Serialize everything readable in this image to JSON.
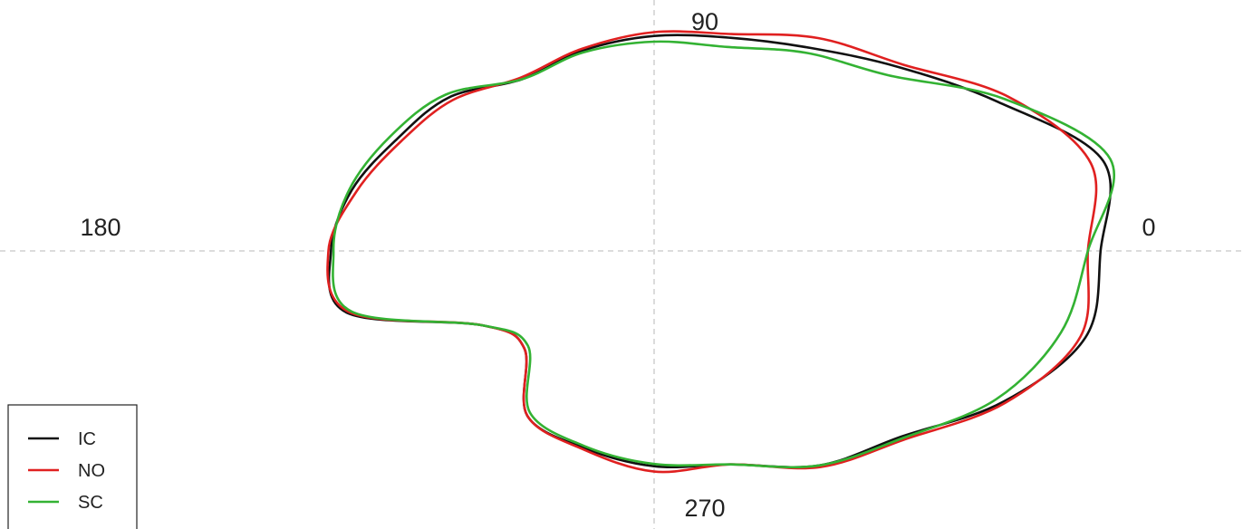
{
  "chart_data": {
    "type": "polar-line",
    "angle_labels": {
      "a0": "0",
      "a90": "90",
      "a180": "180",
      "a270": "270"
    },
    "angle_unit": "degrees",
    "grid": "dashed-crosshair",
    "legend_position": "bottom-left",
    "radius_axis_labels_shown": false,
    "series": [
      {
        "name": "IC",
        "color": "#111111",
        "points": [
          [
            0,
            0.88
          ],
          [
            15,
            0.916
          ],
          [
            30,
            0.783
          ],
          [
            45,
            0.683
          ],
          [
            60,
            0.616
          ],
          [
            75,
            0.58
          ],
          [
            90,
            0.565
          ],
          [
            105,
            0.545
          ],
          [
            120,
            0.521
          ],
          [
            135,
            0.571
          ],
          [
            150,
            0.586
          ],
          [
            165,
            0.617
          ],
          [
            180,
            0.637
          ],
          [
            195,
            0.627
          ],
          [
            210,
            0.391
          ],
          [
            225,
            0.362
          ],
          [
            240,
            0.5
          ],
          [
            255,
            0.536
          ],
          [
            270,
            0.566
          ],
          [
            285,
            0.581
          ],
          [
            300,
            0.651
          ],
          [
            315,
            0.69
          ],
          [
            330,
            0.794
          ],
          [
            345,
            0.88
          ],
          [
            360,
            0.88
          ]
        ]
      },
      {
        "name": "NO",
        "color": "#e02020",
        "points": [
          [
            0,
            0.855
          ],
          [
            15,
            0.891
          ],
          [
            30,
            0.808
          ],
          [
            45,
            0.693
          ],
          [
            60,
            0.646
          ],
          [
            75,
            0.59
          ],
          [
            90,
            0.575
          ],
          [
            105,
            0.55
          ],
          [
            120,
            0.526
          ],
          [
            135,
            0.561
          ],
          [
            150,
            0.576
          ],
          [
            165,
            0.607
          ],
          [
            180,
            0.642
          ],
          [
            195,
            0.622
          ],
          [
            210,
            0.391
          ],
          [
            225,
            0.362
          ],
          [
            240,
            0.5
          ],
          [
            255,
            0.54
          ],
          [
            270,
            0.58
          ],
          [
            285,
            0.581
          ],
          [
            300,
            0.656
          ],
          [
            315,
            0.7
          ],
          [
            330,
            0.799
          ],
          [
            345,
            0.87
          ],
          [
            360,
            0.855
          ]
        ]
      },
      {
        "name": "SC",
        "color": "#33b233",
        "points": [
          [
            0,
            0.855
          ],
          [
            15,
            0.931
          ],
          [
            30,
            0.798
          ],
          [
            45,
            0.653
          ],
          [
            60,
            0.601
          ],
          [
            75,
            0.555
          ],
          [
            90,
            0.55
          ],
          [
            105,
            0.54
          ],
          [
            120,
            0.521
          ],
          [
            135,
            0.581
          ],
          [
            150,
            0.601
          ],
          [
            165,
            0.622
          ],
          [
            180,
            0.632
          ],
          [
            195,
            0.617
          ],
          [
            210,
            0.391
          ],
          [
            225,
            0.352
          ],
          [
            240,
            0.49
          ],
          [
            255,
            0.531
          ],
          [
            270,
            0.56
          ],
          [
            285,
            0.581
          ],
          [
            300,
            0.651
          ],
          [
            315,
            0.695
          ],
          [
            330,
            0.779
          ],
          [
            345,
            0.83
          ],
          [
            360,
            0.855
          ]
        ]
      }
    ]
  }
}
